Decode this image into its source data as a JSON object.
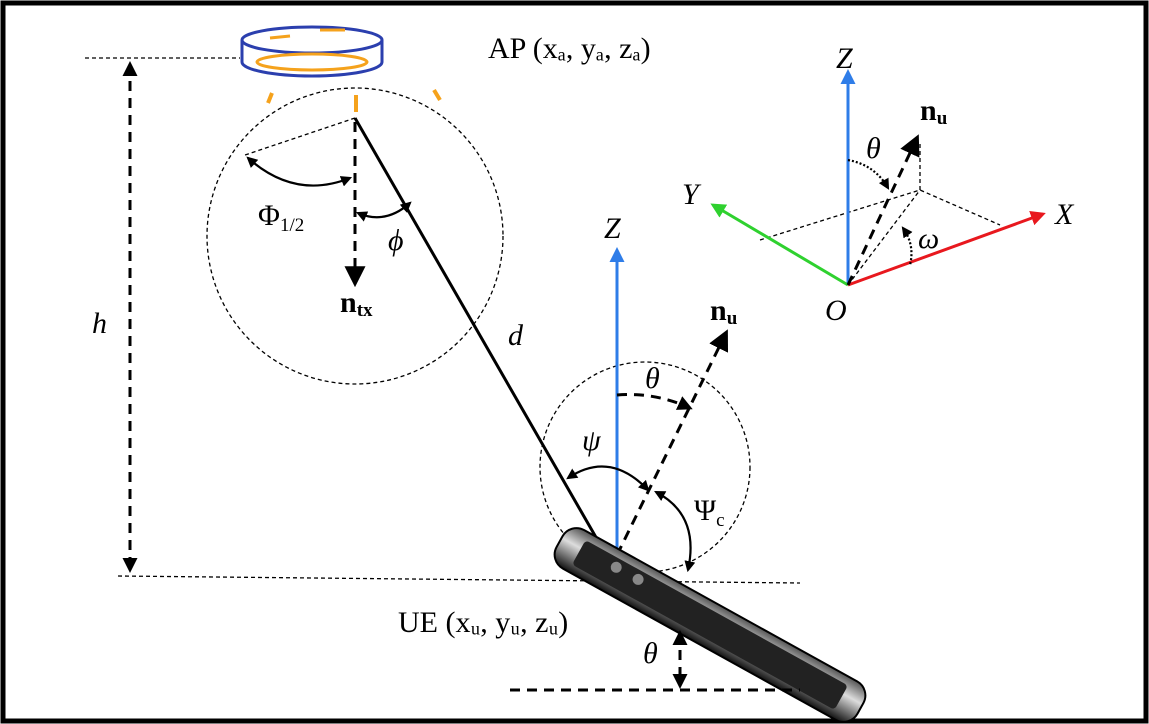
{
  "labels": {
    "ap": {
      "text": "AP (xₐ, yₐ, zₐ)"
    },
    "ue": {
      "text": "UE (xᵤ, yᵤ, zᵤ)"
    },
    "h": {
      "text": "h"
    },
    "d": {
      "text": "d"
    },
    "phi_half": {
      "text": "Φ",
      "sub": "1/2"
    },
    "phi": {
      "text": "ϕ"
    },
    "n_tx": {
      "text": "n",
      "sub": "tx"
    },
    "z_ue": {
      "text": "Z"
    },
    "n_u_ue": {
      "text": "n",
      "sub": "u"
    },
    "theta_ue": {
      "text": "θ"
    },
    "psi": {
      "text": "ψ"
    },
    "psi_c": {
      "text": "Ψ",
      "sub": "c"
    },
    "theta_tilt": {
      "text": "θ"
    },
    "z_axes": {
      "text": "Z"
    },
    "x_axes": {
      "text": "X"
    },
    "y_axes": {
      "text": "Y"
    },
    "o_axes": {
      "text": "O"
    },
    "n_u_axes": {
      "text": "n",
      "sub": "u"
    },
    "theta_axes": {
      "text": "θ"
    },
    "omega_axes": {
      "text": "ω"
    }
  }
}
